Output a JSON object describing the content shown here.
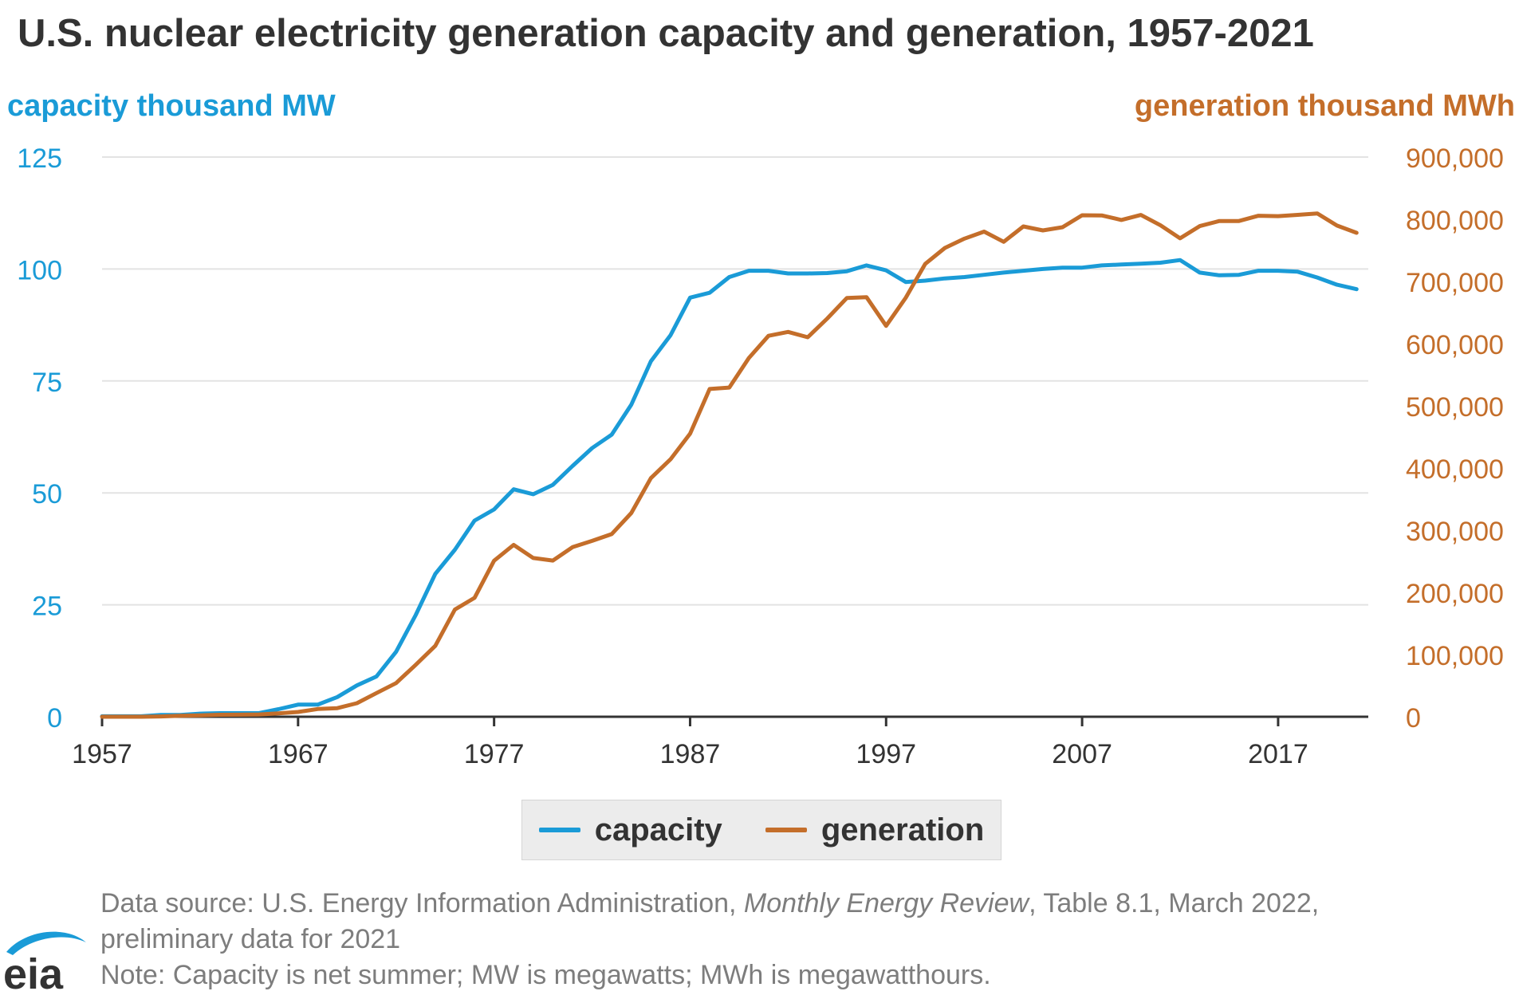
{
  "chart_data": {
    "type": "line",
    "title": "U.S. nuclear electricity generation capacity and generation, 1957-2021",
    "y_left_label": "capacity thousand MW",
    "y_right_label": "generation thousand MWh",
    "y_left_ticks": [
      "0",
      "25",
      "50",
      "75",
      "100",
      "125"
    ],
    "y_right_ticks": [
      "0",
      "100,000",
      "200,000",
      "300,000",
      "400,000",
      "500,000",
      "600,000",
      "700,000",
      "800,000",
      "900,000"
    ],
    "x_ticks": [
      "1957",
      "1967",
      "1977",
      "1987",
      "1997",
      "2007",
      "2017"
    ],
    "x_range": [
      1957,
      2021.6
    ],
    "y_left_range": [
      0,
      125
    ],
    "y_right_range": [
      0,
      900000
    ],
    "grid": true,
    "legend_position": "bottom",
    "x": [
      1957,
      1958,
      1959,
      1960,
      1961,
      1962,
      1963,
      1964,
      1965,
      1966,
      1967,
      1968,
      1969,
      1970,
      1971,
      1972,
      1973,
      1974,
      1975,
      1976,
      1977,
      1978,
      1979,
      1980,
      1981,
      1982,
      1983,
      1984,
      1985,
      1986,
      1987,
      1988,
      1989,
      1990,
      1991,
      1992,
      1993,
      1994,
      1995,
      1996,
      1997,
      1998,
      1999,
      2000,
      2001,
      2002,
      2003,
      2004,
      2005,
      2006,
      2007,
      2008,
      2009,
      2010,
      2011,
      2012,
      2013,
      2014,
      2015,
      2016,
      2017,
      2018,
      2019,
      2020,
      2021
    ],
    "series": [
      {
        "name": "capacity",
        "axis": "left",
        "color": "#1a9bd7",
        "values": [
          0.1,
          0.1,
          0.1,
          0.4,
          0.4,
          0.7,
          0.8,
          0.8,
          0.8,
          1.7,
          2.7,
          2.7,
          4.4,
          7.0,
          9.0,
          14.5,
          22.7,
          31.9,
          37.3,
          43.8,
          46.3,
          50.8,
          49.7,
          51.8,
          56.0,
          60.0,
          63.0,
          69.7,
          79.4,
          85.2,
          93.6,
          94.7,
          98.2,
          99.6,
          99.6,
          99.0,
          99.0,
          99.1,
          99.5,
          100.8,
          99.7,
          97.1,
          97.4,
          97.9,
          98.2,
          98.7,
          99.2,
          99.6,
          100.0,
          100.3,
          100.3,
          100.8,
          101.0,
          101.2,
          101.4,
          102.0,
          99.2,
          98.6,
          98.7,
          99.6,
          99.6,
          99.4,
          98.1,
          96.5,
          95.5
        ]
      },
      {
        "name": "generation",
        "axis": "right",
        "color": "#c46e2a",
        "values": [
          0,
          0,
          0,
          500,
          1700,
          2300,
          3200,
          3300,
          3700,
          5500,
          7700,
          12500,
          13900,
          21800,
          38100,
          54100,
          83500,
          114000,
          172500,
          191100,
          250900,
          276400,
          255200,
          251100,
          272700,
          282800,
          293700,
          327600,
          383700,
          414000,
          455300,
          527000,
          529400,
          576900,
          612600,
          618800,
          610300,
          640400,
          673400,
          674700,
          628600,
          673700,
          728300,
          753900,
          768800,
          780100,
          763700,
          788500,
          782000,
          787200,
          806400,
          806200,
          798900,
          806900,
          790200,
          769300,
          789000,
          797200,
          797200,
          805700,
          805000,
          807100,
          809400,
          789900,
          778200
        ]
      }
    ]
  },
  "legend": {
    "capacity": "capacity",
    "generation": "generation"
  },
  "footer": {
    "source_prefix": "Data source: U.S. Energy Information Administration, ",
    "source_italic": "Monthly Energy Review",
    "source_suffix": ", Table 8.1, March 2022,",
    "source_line2": "preliminary data for 2021",
    "note": "Note: Capacity is net summer; MW is megawatts; MWh is megawatthours."
  },
  "logo": {
    "text": "eia"
  }
}
